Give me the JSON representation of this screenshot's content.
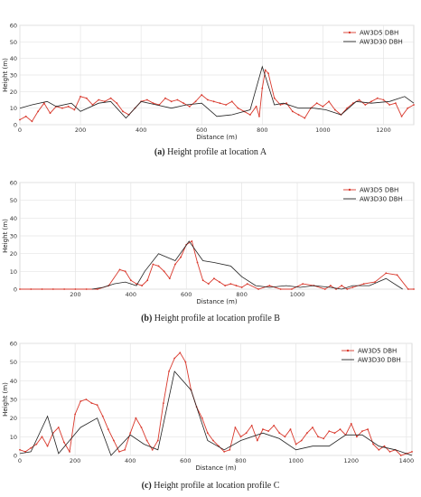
{
  "figure": {
    "panels": [
      {
        "caption_tag": "(a)",
        "caption_text": " Height profile at location A"
      },
      {
        "caption_tag": "(b)",
        "caption_text": " Height profile at location profile B"
      },
      {
        "caption_tag": "(c)",
        "caption_text": " Height profile at location profile C"
      }
    ]
  },
  "chart_data": [
    {
      "type": "line",
      "xlabel": "Distance (m)",
      "ylabel": "Height (m)",
      "xlim": [
        0,
        1300
      ],
      "ylim": [
        0,
        60
      ],
      "xticks": [
        0,
        200,
        400,
        600,
        800,
        1000,
        1200
      ],
      "yticks": [
        0,
        10,
        20,
        30,
        40,
        50,
        60
      ],
      "grid": true,
      "legend_position": "top-right",
      "series": [
        {
          "name": "AW3D5 DBH",
          "color": "#d9382c",
          "marker": "dot",
          "x": [
            0,
            20,
            40,
            60,
            80,
            100,
            120,
            140,
            160,
            180,
            200,
            220,
            240,
            260,
            280,
            300,
            320,
            340,
            360,
            380,
            400,
            420,
            440,
            460,
            480,
            500,
            520,
            540,
            560,
            580,
            600,
            620,
            640,
            660,
            680,
            700,
            720,
            740,
            760,
            780,
            790,
            800,
            810,
            820,
            840,
            860,
            880,
            900,
            920,
            940,
            960,
            980,
            1000,
            1020,
            1040,
            1060,
            1080,
            1100,
            1120,
            1140,
            1160,
            1180,
            1200,
            1220,
            1240,
            1260,
            1280,
            1300
          ],
          "y": [
            3,
            5,
            2,
            8,
            13,
            7,
            11,
            10,
            11,
            9,
            17,
            16,
            12,
            15,
            14,
            16,
            13,
            8,
            6,
            10,
            14,
            15,
            13,
            12,
            16,
            14,
            15,
            13,
            11,
            14,
            18,
            15,
            14,
            13,
            12,
            14,
            10,
            8,
            6,
            11,
            5,
            22,
            33,
            31,
            16,
            12,
            13,
            8,
            6,
            4,
            10,
            13,
            11,
            14,
            9,
            6,
            10,
            13,
            15,
            12,
            14,
            16,
            15,
            12,
            13,
            5,
            10,
            12
          ]
        },
        {
          "name": "AW3D30 DBH",
          "color": "#222222",
          "marker": "none",
          "x": [
            0,
            40,
            90,
            120,
            170,
            200,
            260,
            300,
            350,
            400,
            450,
            500,
            550,
            600,
            650,
            700,
            760,
            800,
            840,
            870,
            920,
            970,
            1010,
            1060,
            1110,
            1160,
            1220,
            1270,
            1300
          ],
          "y": [
            10,
            12,
            14,
            11,
            13,
            8,
            13,
            14,
            4,
            14,
            12,
            10,
            12,
            13,
            5,
            6,
            9,
            35,
            12,
            13,
            10,
            10,
            9,
            6,
            14,
            13,
            14,
            17,
            13
          ]
        }
      ]
    },
    {
      "type": "line",
      "xlabel": "Distance (m)",
      "ylabel": "Height (m)",
      "xlim": [
        0,
        1420
      ],
      "ylim": [
        0,
        60
      ],
      "xticks": [
        200,
        400,
        600,
        800,
        1000
      ],
      "yticks": [
        0,
        10,
        20,
        30,
        40,
        50,
        60
      ],
      "grid": true,
      "legend_position": "top-right",
      "series": [
        {
          "name": "AW3D5 DBH",
          "color": "#d9382c",
          "marker": "dot",
          "x": [
            0,
            40,
            80,
            120,
            160,
            200,
            240,
            280,
            320,
            360,
            380,
            400,
            420,
            440,
            460,
            480,
            500,
            520,
            540,
            560,
            580,
            600,
            620,
            640,
            660,
            680,
            700,
            720,
            740,
            760,
            780,
            800,
            820,
            860,
            900,
            940,
            980,
            1020,
            1060,
            1100,
            1120,
            1140,
            1160,
            1180,
            1200,
            1240,
            1280,
            1320,
            1360,
            1400,
            1420
          ],
          "y": [
            0,
            0,
            0,
            0,
            0,
            0,
            0,
            0,
            2,
            11,
            10,
            5,
            3,
            2,
            5,
            14,
            13,
            10,
            6,
            14,
            18,
            25,
            27,
            15,
            5,
            3,
            6,
            4,
            2,
            3,
            2,
            1,
            3,
            0,
            2,
            0,
            0,
            3,
            2,
            0,
            2,
            0,
            2,
            0,
            1,
            3,
            4,
            9,
            8,
            0,
            0
          ]
        },
        {
          "name": "AW3D30 DBH",
          "color": "#222222",
          "marker": "none",
          "x": [
            260,
            300,
            340,
            380,
            420,
            450,
            500,
            560,
            610,
            660,
            700,
            760,
            800,
            850,
            900,
            960,
            1010,
            1060,
            1120,
            1160,
            1200,
            1260,
            1320,
            1380
          ],
          "y": [
            0,
            1,
            3,
            4,
            2,
            10,
            20,
            16,
            27,
            16,
            15,
            13,
            7,
            2,
            1,
            2,
            1,
            2,
            1,
            0,
            2,
            2,
            6,
            0
          ]
        }
      ]
    },
    {
      "type": "line",
      "xlabel": "Distance (m)",
      "ylabel": "Height (m)",
      "xlim": [
        0,
        1420
      ],
      "ylim": [
        0,
        60
      ],
      "xticks": [
        0,
        200,
        400,
        600,
        800,
        1000,
        1200,
        1400
      ],
      "yticks": [
        0,
        10,
        20,
        30,
        40,
        50,
        60
      ],
      "grid": true,
      "legend_position": "top-right",
      "series": [
        {
          "name": "AW3D5 DBH",
          "color": "#d9382c",
          "marker": "dot",
          "x": [
            0,
            20,
            40,
            60,
            80,
            100,
            120,
            140,
            160,
            180,
            200,
            220,
            240,
            260,
            280,
            300,
            320,
            340,
            360,
            380,
            400,
            420,
            440,
            460,
            480,
            500,
            520,
            540,
            560,
            580,
            600,
            620,
            640,
            660,
            680,
            700,
            720,
            740,
            760,
            780,
            800,
            820,
            840,
            860,
            880,
            900,
            920,
            940,
            960,
            980,
            1000,
            1020,
            1040,
            1060,
            1080,
            1100,
            1120,
            1140,
            1160,
            1180,
            1200,
            1220,
            1240,
            1260,
            1280,
            1300,
            1320,
            1340,
            1360,
            1380,
            1400,
            1420
          ],
          "y": [
            3,
            2,
            4,
            6,
            10,
            5,
            12,
            15,
            7,
            2,
            22,
            29,
            30,
            28,
            27,
            21,
            14,
            8,
            2,
            3,
            12,
            20,
            15,
            8,
            3,
            8,
            28,
            45,
            52,
            55,
            50,
            35,
            26,
            20,
            12,
            8,
            5,
            2,
            3,
            15,
            10,
            12,
            16,
            8,
            14,
            13,
            16,
            12,
            10,
            14,
            6,
            8,
            12,
            15,
            10,
            9,
            13,
            12,
            14,
            11,
            17,
            10,
            13,
            14,
            6,
            3,
            5,
            2,
            3,
            0,
            1,
            2
          ]
        },
        {
          "name": "AW3D30 DBH",
          "color": "#222222",
          "marker": "none",
          "x": [
            0,
            40,
            100,
            140,
            180,
            220,
            280,
            330,
            400,
            450,
            500,
            560,
            620,
            680,
            740,
            800,
            880,
            940,
            1000,
            1060,
            1120,
            1180,
            1240,
            1300,
            1360,
            1420
          ],
          "y": [
            1,
            2,
            21,
            1,
            8,
            15,
            20,
            0,
            11,
            6,
            3,
            45,
            35,
            8,
            3,
            8,
            12,
            9,
            3,
            5,
            5,
            11,
            11,
            5,
            3,
            0
          ]
        }
      ]
    }
  ]
}
